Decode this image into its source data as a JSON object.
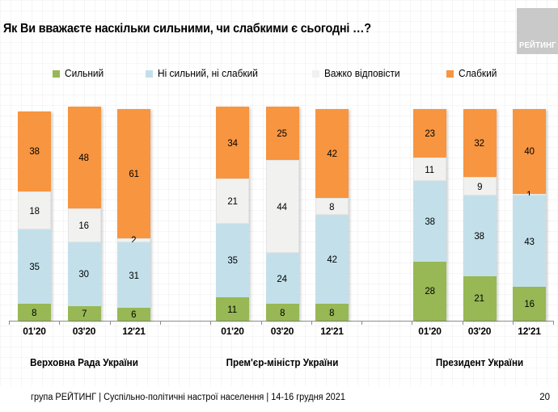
{
  "title": "Як Ви вважаєте наскільки сильними, чи слабкими є сьогодні …?",
  "logo_text": "РЕЙТИНГ",
  "legend": {
    "items": [
      {
        "label": "Сильний",
        "color": "#97B854"
      },
      {
        "label": "Ні сильний, ні слабкий",
        "color": "#C3E0EA"
      },
      {
        "label": "Важко відповісти",
        "color": "#F1F1F0"
      },
      {
        "label": "Слабкий",
        "color": "#F79540"
      }
    ]
  },
  "chart_data": {
    "type": "bar",
    "variant": "stacked-column",
    "unit": "percent",
    "title": "Як Ви вважаєте наскільки сильними, чи слабкими є сьогодні …?",
    "stack_order_bottom_to_top": [
      "Сильний",
      "Ні сильний, ні слабкий",
      "Важко відповісти",
      "Слабкий"
    ],
    "stack_colors": [
      "#97B854",
      "#C3E0EA",
      "#F1F1F0",
      "#F79540"
    ],
    "categories": [
      "01'20",
      "03'20",
      "12'21"
    ],
    "ylim": [
      0,
      100
    ],
    "grid": false,
    "legend_position": "top",
    "groups": [
      {
        "label": "Верховна Рада України",
        "bars": [
          {
            "category": "01'20",
            "stack": [
              8,
              35,
              18,
              38
            ]
          },
          {
            "category": "03'20",
            "stack": [
              7,
              30,
              16,
              48
            ]
          },
          {
            "category": "12'21",
            "stack": [
              6,
              31,
              2,
              61
            ]
          }
        ]
      },
      {
        "label": "Прем'єр-міністр України",
        "bars": [
          {
            "category": "01'20",
            "stack": [
              11,
              35,
              21,
              34
            ]
          },
          {
            "category": "03'20",
            "stack": [
              8,
              24,
              44,
              25
            ]
          },
          {
            "category": "12'21",
            "stack": [
              8,
              42,
              8,
              42
            ]
          }
        ]
      },
      {
        "label": "Президент України",
        "bars": [
          {
            "category": "01'20",
            "stack": [
              28,
              38,
              11,
              23
            ]
          },
          {
            "category": "03'20",
            "stack": [
              21,
              38,
              9,
              32
            ]
          },
          {
            "category": "12'21",
            "stack": [
              16,
              43,
              1,
              40
            ]
          }
        ]
      }
    ]
  },
  "footer": {
    "text": "група РЕЙТИНГ | Суспільно-політичні настрої населення | 14-16 грудня 2021",
    "page": "20"
  }
}
